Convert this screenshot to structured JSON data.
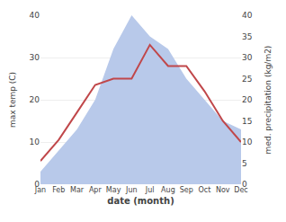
{
  "chart_data": {
    "type": "line",
    "categories": [
      "Jan",
      "Feb",
      "Mar",
      "Apr",
      "May",
      "Jun",
      "Jul",
      "Aug",
      "Sep",
      "Oct",
      "Nov",
      "Dec"
    ],
    "series": [
      {
        "type": "area",
        "axis": "y2",
        "color": "#b8c9ea",
        "values": [
          3,
          8,
          13,
          20,
          32,
          40,
          35,
          32,
          25,
          20,
          15,
          13
        ]
      },
      {
        "type": "line",
        "color": "#c0474a",
        "values": [
          5.5,
          10.5,
          17,
          23.5,
          25,
          25,
          33,
          28,
          28,
          22,
          15,
          10
        ]
      }
    ],
    "xlabel": "date (month)",
    "ylabel": "max temp (C)",
    "y2label": "med. precipitation (kg/m2)",
    "ylim": [
      0,
      40
    ],
    "yticks": [
      0,
      10,
      20,
      30,
      40
    ],
    "y2lim": [
      0,
      40
    ],
    "y2ticks": [
      0,
      5,
      10,
      15,
      20,
      25,
      30,
      35,
      40
    ],
    "grid": true
  }
}
